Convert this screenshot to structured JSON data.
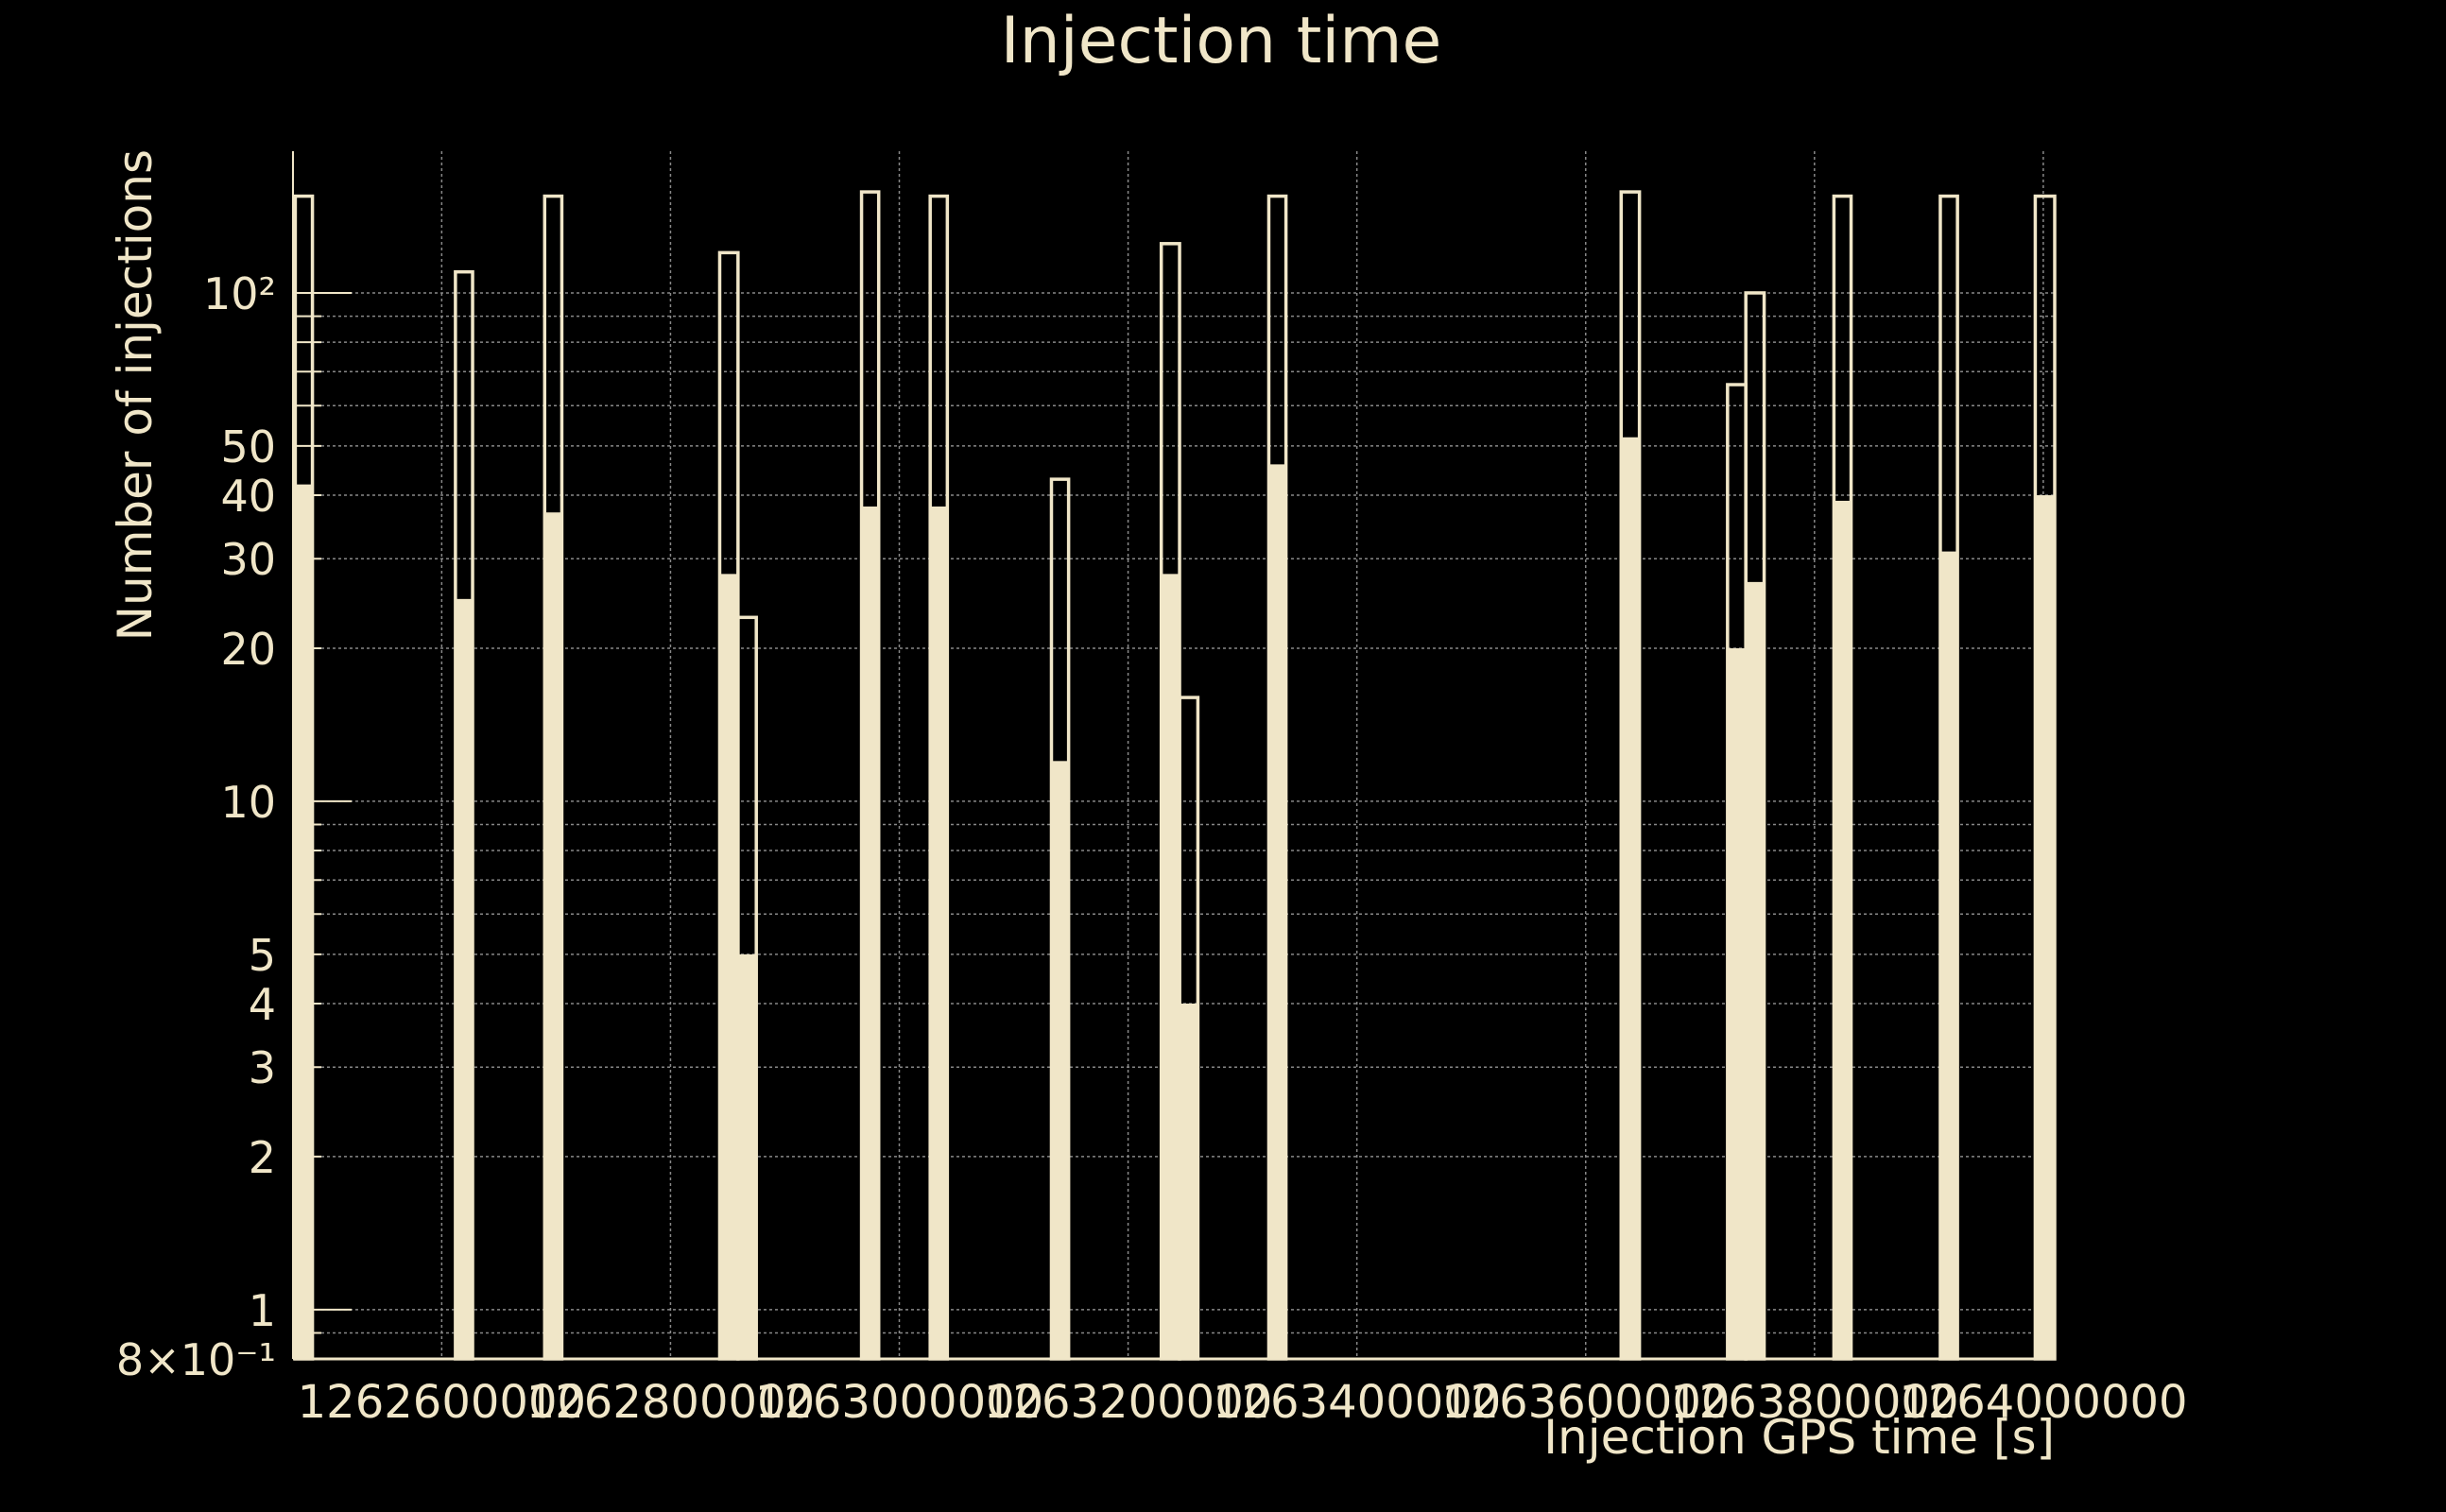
{
  "colors": {
    "background": "#000000",
    "foreground": "#f0e6c8",
    "grid": "#888888"
  },
  "chart_data": {
    "type": "bar",
    "title": "Injection time",
    "xlabel": "Injection GPS time [s]",
    "ylabel": "Number of injections",
    "yscale": "log",
    "xlim": [
      1262470000,
      1264010000
    ],
    "ylim": [
      0.8,
      190
    ],
    "grid": true,
    "x_ticks": [
      1262600000,
      1262800000,
      1263000000,
      1263200000,
      1263400000,
      1263600000,
      1263800000,
      1264000000
    ],
    "x_tick_labels": [
      "1262600000",
      "1262800000",
      "1263000000",
      "1263200000",
      "1263400000",
      "1263600000",
      "1263800000",
      "1264000000"
    ],
    "y_ticks": [
      0.8,
      1,
      2,
      3,
      4,
      5,
      10,
      20,
      30,
      40,
      50,
      100
    ],
    "y_tick_labels": [
      "8×10⁻¹",
      "1",
      "2",
      "3",
      "4",
      "5",
      "10",
      "20",
      "30",
      "40",
      "50",
      "10²"
    ],
    "series": [
      {
        "style": "outline",
        "bars": [
          {
            "x0": 1262472000,
            "x1": 1262487000,
            "value": 155
          },
          {
            "x0": 1262612000,
            "x1": 1262627000,
            "value": 110
          },
          {
            "x0": 1262690000,
            "x1": 1262705000,
            "value": 155
          },
          {
            "x0": 1262843000,
            "x1": 1262859000,
            "value": 120
          },
          {
            "x0": 1262859000,
            "x1": 1262875000,
            "value": 23
          },
          {
            "x0": 1262967000,
            "x1": 1262982000,
            "value": 158
          },
          {
            "x0": 1263027000,
            "x1": 1263042000,
            "value": 155
          },
          {
            "x0": 1263133000,
            "x1": 1263148000,
            "value": 43
          },
          {
            "x0": 1263229000,
            "x1": 1263245000,
            "value": 125
          },
          {
            "x0": 1263245000,
            "x1": 1263261000,
            "value": 16
          },
          {
            "x0": 1263323000,
            "x1": 1263338000,
            "value": 155
          },
          {
            "x0": 1263631000,
            "x1": 1263647000,
            "value": 158
          },
          {
            "x0": 1263724000,
            "x1": 1263740000,
            "value": 66
          },
          {
            "x0": 1263740000,
            "x1": 1263756000,
            "value": 100
          },
          {
            "x0": 1263817000,
            "x1": 1263832000,
            "value": 155
          },
          {
            "x0": 1263910000,
            "x1": 1263925000,
            "value": 155
          },
          {
            "x0": 1263993000,
            "x1": 1264010000,
            "value": 155
          }
        ]
      },
      {
        "style": "filled",
        "bars": [
          {
            "x0": 1262472000,
            "x1": 1262487000,
            "value": 42
          },
          {
            "x0": 1262612000,
            "x1": 1262627000,
            "value": 25
          },
          {
            "x0": 1262690000,
            "x1": 1262705000,
            "value": 37
          },
          {
            "x0": 1262843000,
            "x1": 1262859000,
            "value": 28
          },
          {
            "x0": 1262859000,
            "x1": 1262875000,
            "value": 5
          },
          {
            "x0": 1262967000,
            "x1": 1262982000,
            "value": 38
          },
          {
            "x0": 1263027000,
            "x1": 1263042000,
            "value": 38
          },
          {
            "x0": 1263133000,
            "x1": 1263148000,
            "value": 12
          },
          {
            "x0": 1263229000,
            "x1": 1263245000,
            "value": 28
          },
          {
            "x0": 1263245000,
            "x1": 1263261000,
            "value": 4
          },
          {
            "x0": 1263323000,
            "x1": 1263338000,
            "value": 46
          },
          {
            "x0": 1263631000,
            "x1": 1263647000,
            "value": 52
          },
          {
            "x0": 1263724000,
            "x1": 1263740000,
            "value": 20
          },
          {
            "x0": 1263740000,
            "x1": 1263756000,
            "value": 27
          },
          {
            "x0": 1263817000,
            "x1": 1263832000,
            "value": 39
          },
          {
            "x0": 1263910000,
            "x1": 1263925000,
            "value": 31
          },
          {
            "x0": 1263993000,
            "x1": 1264010000,
            "value": 40
          }
        ]
      }
    ]
  }
}
